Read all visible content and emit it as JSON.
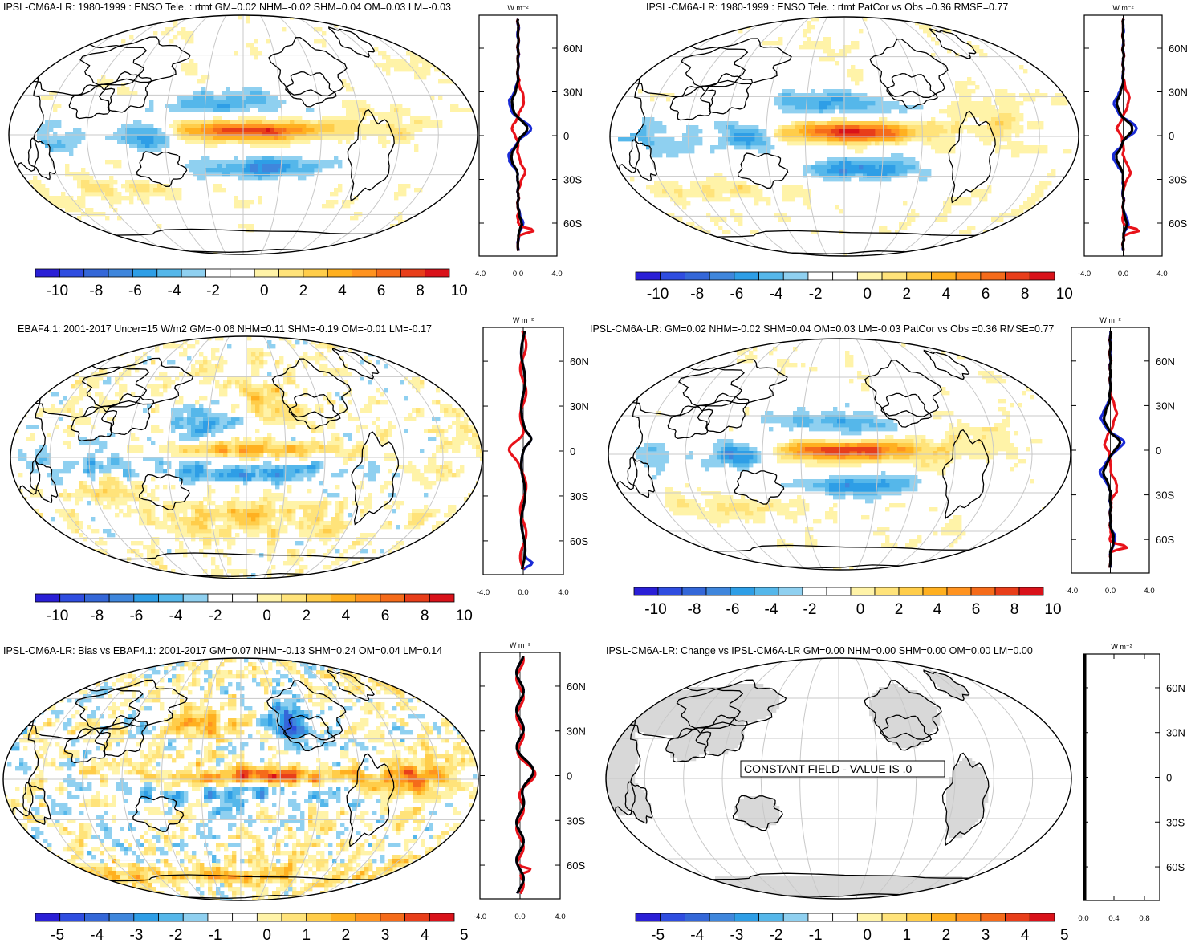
{
  "colors": {
    "model_line": "#1a2bd6",
    "obs_line": "#e8121a",
    "ref_line": "#000000",
    "land_gray": "#d8d8d8",
    "grid": "#c8c8c8",
    "palette": [
      "#2a1fd6",
      "#2f4de0",
      "#3467d8",
      "#3f86dc",
      "#2e9ee6",
      "#55b7ea",
      "#8fd0f0",
      "#ffffff",
      "#ffffff",
      "#fff3a8",
      "#ffe37a",
      "#ffcd4a",
      "#ffb020",
      "#ff9320",
      "#f56b1a",
      "#e83e1a",
      "#d9121a"
    ]
  },
  "chart_data": [
    {
      "id": "p1",
      "type": "heatmap",
      "title": "IPSL-CM6A-LR: 1980-1999 : ENSO Tele. : rtmt GM=0.02 NHM=-0.02 SHM=0.04 OM=0.03 LM=-0.03",
      "field": "enso",
      "colorbar_labels": [
        "-10",
        "-8",
        "-6",
        "-4",
        "-2",
        "0",
        "2",
        "4",
        "6",
        "8",
        "10"
      ],
      "zonal": {
        "unit": "W m⁻²",
        "xticks": [
          "-4.0",
          "0.0",
          "4.0"
        ],
        "xlim": [
          -4,
          4
        ],
        "lat_labels": [
          "60N",
          "30N",
          "0",
          "30S",
          "60S"
        ],
        "lat_values": [
          60,
          30,
          0,
          -30,
          -60
        ],
        "lines": [
          "model",
          "obs",
          "ref"
        ]
      }
    },
    {
      "id": "p2",
      "type": "heatmap",
      "title": "IPSL-CM6A-LR: 1980-1999 : ENSO Tele. : rtmt PatCor vs Obs =0.36 RMSE=0.77",
      "field": "enso",
      "colorbar_labels": [
        "-10",
        "-8",
        "-6",
        "-4",
        "-2",
        "0",
        "2",
        "4",
        "6",
        "8",
        "10"
      ],
      "zonal": {
        "unit": "W m⁻²",
        "xticks": [
          "-4.0",
          "0.0",
          "4.0"
        ],
        "xlim": [
          -4,
          4
        ],
        "lat_labels": [
          "60N",
          "30N",
          "0",
          "30S",
          "60S"
        ],
        "lat_values": [
          60,
          30,
          0,
          -30,
          -60
        ],
        "lines": [
          "model",
          "obs",
          "ref"
        ]
      }
    },
    {
      "id": "p3",
      "type": "heatmap",
      "title": "EBAF4.1: 2001-2017 Uncer=15 W/m2 GM=-0.06 NHM=0.11 SHM=-0.19 OM=-0.01 LM=-0.17",
      "field": "obs",
      "colorbar_labels": [
        "-10",
        "-8",
        "-6",
        "-4",
        "-2",
        "0",
        "2",
        "4",
        "6",
        "8",
        "10"
      ],
      "zonal": {
        "unit": "W m⁻²",
        "xticks": [
          "-4.0",
          "0.0",
          "4.0"
        ],
        "xlim": [
          -4,
          4
        ],
        "lat_labels": [
          "60N",
          "30N",
          "0",
          "30S",
          "60S"
        ],
        "lat_values": [
          60,
          30,
          0,
          -30,
          -60
        ],
        "lines": [
          "model",
          "obs",
          "ref"
        ]
      }
    },
    {
      "id": "p4",
      "type": "heatmap",
      "title": "IPSL-CM6A-LR: GM=0.02 NHM=-0.02 SHM=0.04 OM=0.03 LM=-0.03 PatCor vs Obs =0.36 RMSE=0.77",
      "field": "enso",
      "colorbar_labels": [
        "-10",
        "-8",
        "-6",
        "-4",
        "-2",
        "0",
        "2",
        "4",
        "6",
        "8",
        "10"
      ],
      "zonal": {
        "unit": "W m⁻²",
        "xticks": [
          "-4.0",
          "0.0",
          "4.0"
        ],
        "xlim": [
          -4,
          4
        ],
        "lat_labels": [
          "60N",
          "30N",
          "0",
          "30S",
          "60S"
        ],
        "lat_values": [
          60,
          30,
          0,
          -30,
          -60
        ],
        "lines": [
          "model",
          "obs",
          "ref"
        ]
      }
    },
    {
      "id": "p5",
      "type": "heatmap",
      "title": "IPSL-CM6A-LR: Bias vs EBAF4.1: 2001-2017 GM=0.07 NHM=-0.13 SHM=0.24 OM=0.04 LM=0.14",
      "field": "bias",
      "colorbar_labels": [
        "-5",
        "-4",
        "-3",
        "-2",
        "-1",
        "0",
        "1",
        "2",
        "3",
        "4",
        "5"
      ],
      "zonal": {
        "unit": "W m⁻²",
        "xticks": [
          "-4.0",
          "0.0",
          "4.0"
        ],
        "xlim": [
          -4,
          4
        ],
        "lat_labels": [
          "60N",
          "30N",
          "0",
          "30S",
          "60S"
        ],
        "lat_values": [
          60,
          30,
          0,
          -30,
          -60
        ],
        "lines": [
          "model",
          "obs",
          "ref"
        ]
      }
    },
    {
      "id": "p6",
      "type": "heatmap",
      "title": "IPSL-CM6A-LR: Change vs IPSL-CM6A-LR GM=0.00 NHM=0.00 SHM=0.00 OM=0.00 LM=0.00",
      "field": "constant",
      "constant_label": "CONSTANT FIELD - VALUE IS .0",
      "colorbar_labels": [
        "-5",
        "-4",
        "-3",
        "-2",
        "-1",
        "0",
        "1",
        "2",
        "3",
        "4",
        "5"
      ],
      "zonal": {
        "unit": "W m⁻²",
        "xticks": [
          "0.0",
          "0.4",
          "0.8"
        ],
        "xlim": [
          0,
          1
        ],
        "lat_labels": [
          "60N",
          "30N",
          "0",
          "30S",
          "60S"
        ],
        "lat_values": [
          60,
          30,
          0,
          -30,
          -60
        ],
        "lines": [
          "flat"
        ]
      }
    }
  ]
}
